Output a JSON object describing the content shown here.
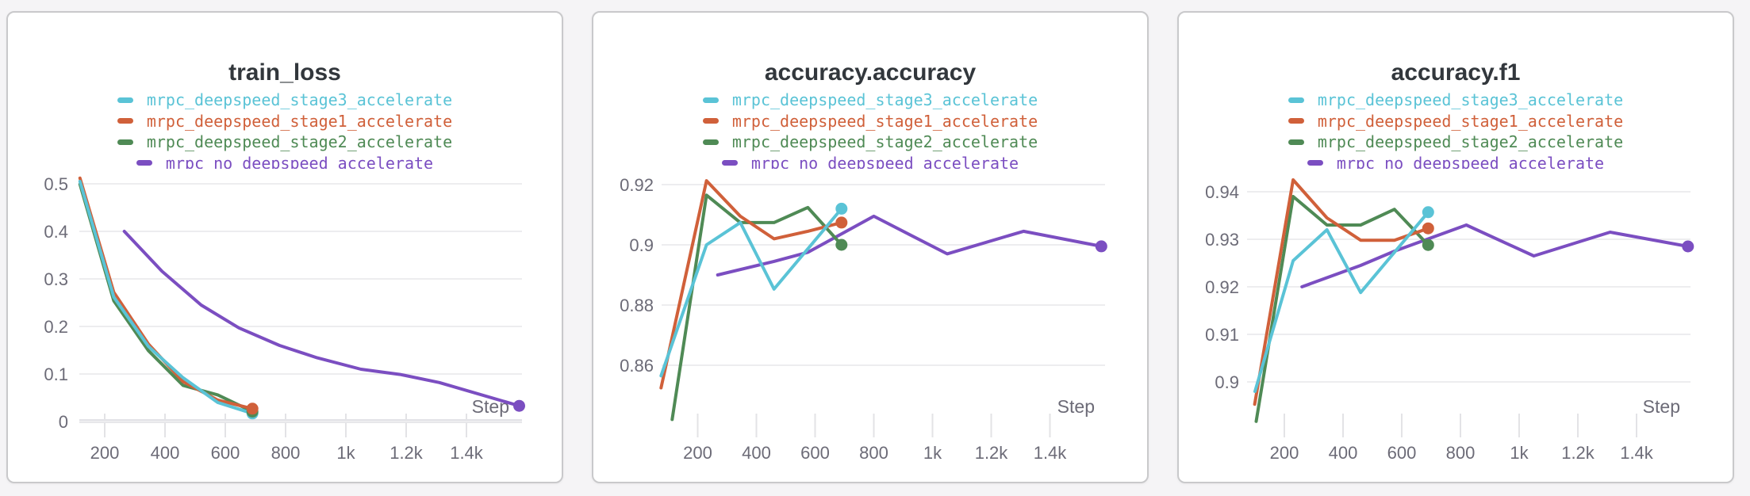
{
  "page": {
    "background": "#f5f4f6",
    "card_background": "#ffffff"
  },
  "colors": {
    "stage3": "#5ac3d6",
    "stage1": "#d0603a",
    "stage2": "#4f8a55",
    "no_deepspeed": "#7b4ec1",
    "title_text": "#32373c",
    "axis_text": "#6c6b77",
    "gridline": "#ededef"
  },
  "chart_data": [
    {
      "type": "line",
      "title": "train_loss",
      "x_label": "Step",
      "x_ticks": [
        {
          "value": 200,
          "label": "200"
        },
        {
          "value": 400,
          "label": "400"
        },
        {
          "value": 600,
          "label": "600"
        },
        {
          "value": 800,
          "label": "800"
        },
        {
          "value": 1000,
          "label": "1k"
        },
        {
          "value": 1200,
          "label": "1.2k"
        },
        {
          "value": 1400,
          "label": "1.4k"
        }
      ],
      "y_ticks": [
        {
          "value": 0.5,
          "label": "0.5"
        },
        {
          "value": 0.4,
          "label": "0.4"
        },
        {
          "value": 0.3,
          "label": "0.3"
        },
        {
          "value": 0.2,
          "label": "0.2"
        },
        {
          "value": 0.1,
          "label": "0.1"
        },
        {
          "value": 0,
          "label": "0"
        }
      ],
      "x_range": [
        60,
        1600
      ],
      "y_range": [
        0,
        0.52
      ],
      "grid": true,
      "legend_position": "top-center",
      "series": [
        {
          "name": "mrpc_deepspeed_stage3_accelerate",
          "color": "#5ac3d6",
          "points": [
            [
              118,
              0.505
            ],
            [
              230,
              0.262
            ],
            [
              345,
              0.158
            ],
            [
              460,
              0.092
            ],
            [
              575,
              0.04
            ],
            [
              690,
              0.017
            ]
          ],
          "end_dot": true
        },
        {
          "name": "mrpc_deepspeed_stage1_accelerate",
          "color": "#d0603a",
          "points": [
            [
              118,
              0.512
            ],
            [
              230,
              0.272
            ],
            [
              345,
              0.163
            ],
            [
              460,
              0.084
            ],
            [
              575,
              0.045
            ],
            [
              690,
              0.027
            ]
          ],
          "end_dot": true
        },
        {
          "name": "mrpc_deepspeed_stage2_accelerate",
          "color": "#4f8a55",
          "points": [
            [
              118,
              0.499
            ],
            [
              230,
              0.254
            ],
            [
              345,
              0.149
            ],
            [
              460,
              0.076
            ],
            [
              575,
              0.056
            ],
            [
              690,
              0.021
            ]
          ],
          "end_dot": true
        },
        {
          "name": "mrpc no deepspeed accelerate",
          "color": "#7b4ec1",
          "points": [
            [
              265,
              0.4
            ],
            [
              390,
              0.316
            ],
            [
              520,
              0.245
            ],
            [
              645,
              0.197
            ],
            [
              780,
              0.16
            ],
            [
              905,
              0.134
            ],
            [
              1050,
              0.11
            ],
            [
              1180,
              0.099
            ],
            [
              1310,
              0.082
            ],
            [
              1575,
              0.033
            ]
          ],
          "end_dot": true
        }
      ]
    },
    {
      "type": "line",
      "title": "accuracy.accuracy",
      "x_label": "Step",
      "x_ticks": [
        {
          "value": 200,
          "label": "200"
        },
        {
          "value": 400,
          "label": "400"
        },
        {
          "value": 600,
          "label": "600"
        },
        {
          "value": 800,
          "label": "800"
        },
        {
          "value": 1000,
          "label": "1k"
        },
        {
          "value": 1200,
          "label": "1.2k"
        },
        {
          "value": 1400,
          "label": "1.4k"
        }
      ],
      "y_ticks": [
        {
          "value": 0.92,
          "label": "0.92"
        },
        {
          "value": 0.9,
          "label": "0.9"
        },
        {
          "value": 0.88,
          "label": "0.88"
        },
        {
          "value": 0.86,
          "label": "0.86"
        }
      ],
      "x_range": [
        60,
        1600
      ],
      "y_range": [
        0.842,
        0.924
      ],
      "grid": true,
      "legend_position": "top-center",
      "series": [
        {
          "name": "mrpc_deepspeed_stage3_accelerate",
          "color": "#5ac3d6",
          "points": [
            [
              75,
              0.8565
            ],
            [
              230,
              0.9
            ],
            [
              345,
              0.9074
            ],
            [
              460,
              0.8853
            ],
            [
              690,
              0.912
            ]
          ],
          "end_dot": true
        },
        {
          "name": "mrpc_deepspeed_stage1_accelerate",
          "color": "#d0603a",
          "points": [
            [
              75,
              0.8525
            ],
            [
              230,
              0.9213
            ],
            [
              345,
              0.9095
            ],
            [
              460,
              0.902
            ],
            [
              575,
              0.9045
            ],
            [
              690,
              0.9074
            ]
          ],
          "end_dot": true
        },
        {
          "name": "mrpc_deepspeed_stage2_accelerate",
          "color": "#4f8a55",
          "points": [
            [
              113,
              0.842
            ],
            [
              230,
              0.9165
            ],
            [
              345,
              0.9074
            ],
            [
              460,
              0.9074
            ],
            [
              575,
              0.9124
            ],
            [
              690,
              0.9
            ]
          ],
          "end_dot": true
        },
        {
          "name": "mrpc no deepspeed accelerate",
          "color": "#7b4ec1",
          "points": [
            [
              268,
              0.89
            ],
            [
              460,
              0.8945
            ],
            [
              575,
              0.8975
            ],
            [
              800,
              0.9095
            ],
            [
              1050,
              0.897
            ],
            [
              1310,
              0.9045
            ],
            [
              1575,
              0.8995
            ]
          ],
          "end_dot": true
        }
      ]
    },
    {
      "type": "line",
      "title": "accuracy.f1",
      "x_label": "Step",
      "x_ticks": [
        {
          "value": 200,
          "label": "200"
        },
        {
          "value": 400,
          "label": "400"
        },
        {
          "value": 600,
          "label": "600"
        },
        {
          "value": 800,
          "label": "800"
        },
        {
          "value": 1000,
          "label": "1k"
        },
        {
          "value": 1200,
          "label": "1.2k"
        },
        {
          "value": 1400,
          "label": "1.4k"
        }
      ],
      "y_ticks": [
        {
          "value": 0.94,
          "label": "0.94"
        },
        {
          "value": 0.93,
          "label": "0.93"
        },
        {
          "value": 0.92,
          "label": "0.92"
        },
        {
          "value": 0.91,
          "label": "0.91"
        },
        {
          "value": 0.9,
          "label": "0.9"
        }
      ],
      "x_range": [
        60,
        1600
      ],
      "y_range": [
        0.889,
        0.944
      ],
      "grid": true,
      "legend_position": "top-center",
      "series": [
        {
          "name": "mrpc_deepspeed_stage3_accelerate",
          "color": "#5ac3d6",
          "points": [
            [
              100,
              0.898
            ],
            [
              230,
              0.9255
            ],
            [
              345,
              0.932
            ],
            [
              460,
              0.9188
            ],
            [
              690,
              0.9357
            ]
          ],
          "end_dot": true
        },
        {
          "name": "mrpc_deepspeed_stage1_accelerate",
          "color": "#d0603a",
          "points": [
            [
              99,
              0.8953
            ],
            [
              230,
              0.9425
            ],
            [
              345,
              0.9345
            ],
            [
              460,
              0.9298
            ],
            [
              575,
              0.9298
            ],
            [
              690,
              0.9323
            ]
          ],
          "end_dot": true
        },
        {
          "name": "mrpc_deepspeed_stage2_accelerate",
          "color": "#4f8a55",
          "points": [
            [
              104,
              0.8917
            ],
            [
              230,
              0.939
            ],
            [
              345,
              0.933
            ],
            [
              460,
              0.933
            ],
            [
              575,
              0.9363
            ],
            [
              690,
              0.9288
            ]
          ],
          "end_dot": true
        },
        {
          "name": "mrpc no deepspeed accelerate",
          "color": "#7b4ec1",
          "points": [
            [
              260,
              0.92
            ],
            [
              460,
              0.9245
            ],
            [
              575,
              0.9275
            ],
            [
              820,
              0.933
            ],
            [
              1050,
              0.9265
            ],
            [
              1310,
              0.9315
            ],
            [
              1575,
              0.9285
            ]
          ],
          "end_dot": true
        }
      ]
    }
  ]
}
